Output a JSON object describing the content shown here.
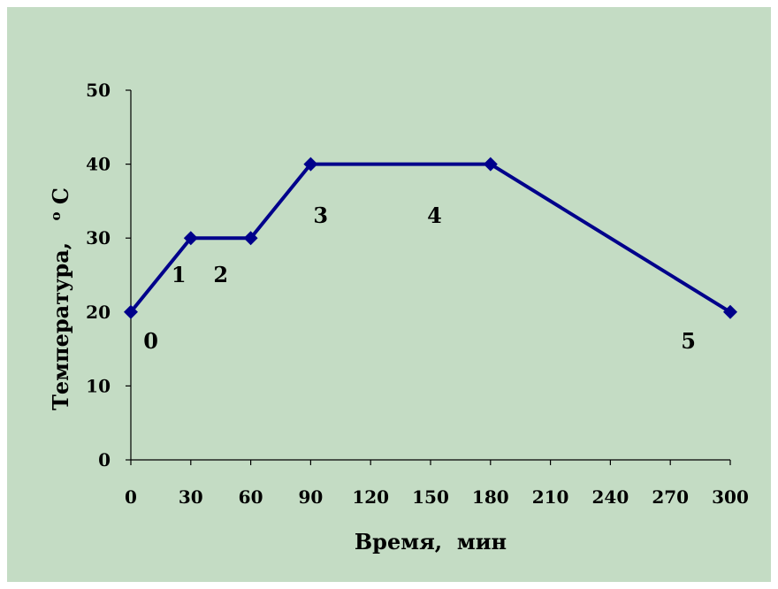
{
  "chart_data": {
    "type": "line",
    "x": [
      0,
      30,
      60,
      90,
      180,
      300
    ],
    "series": [
      {
        "values": [
          20,
          30,
          30,
          40,
          40,
          20
        ]
      }
    ],
    "xlabel": "Время,  мин",
    "ylabel": "Температура,",
    "ylabel_unit": "C",
    "ylabel_unit_prefix": "o",
    "xlim": [
      0,
      300
    ],
    "ylim": [
      0,
      50
    ],
    "x_ticks": [
      "0",
      "30",
      "60",
      "90",
      "120",
      "150",
      "180",
      "210",
      "240",
      "270",
      "300"
    ],
    "y_ticks": [
      "0",
      "10",
      "20",
      "30",
      "40",
      "50"
    ],
    "annotations": [
      {
        "text": "0",
        "x": 10,
        "y": 16
      },
      {
        "text": "1",
        "x": 24,
        "y": 25
      },
      {
        "text": "2",
        "x": 45,
        "y": 25
      },
      {
        "text": "3",
        "x": 95,
        "y": 33
      },
      {
        "text": "4",
        "x": 152,
        "y": 33
      },
      {
        "text": "5",
        "x": 279,
        "y": 16
      }
    ],
    "grid": false,
    "legend": "none",
    "colors": {
      "line": "#00008b",
      "background": "#c4dcc4"
    }
  }
}
